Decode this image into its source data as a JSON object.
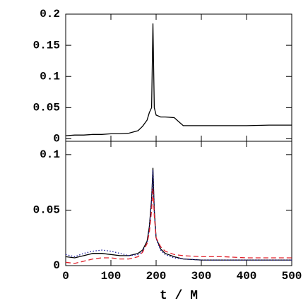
{
  "chart_data": [
    {
      "type": "line",
      "xlim": [
        0,
        500
      ],
      "xticks": [
        0,
        100,
        200,
        300,
        400,
        500
      ],
      "ylim": [
        -0.004,
        0.2
      ],
      "yticks": [
        0,
        0.05,
        0.1,
        0.15,
        0.2
      ],
      "x": [
        0,
        20,
        40,
        60,
        80,
        100,
        120,
        140,
        160,
        170,
        180,
        185,
        190,
        193,
        196,
        200,
        210,
        220,
        240,
        260,
        300,
        350,
        400,
        450,
        500
      ],
      "series": [
        {
          "color": "#000000",
          "style": "solid",
          "values": [
            0.005,
            0.006,
            0.006,
            0.007,
            0.007,
            0.008,
            0.008,
            0.009,
            0.013,
            0.02,
            0.03,
            0.042,
            0.05,
            0.185,
            0.05,
            0.038,
            0.035,
            0.035,
            0.034,
            0.021,
            0.021,
            0.021,
            0.021,
            0.022,
            0.022
          ]
        }
      ]
    },
    {
      "type": "line",
      "xlabel": "t / M",
      "xlim": [
        0,
        500
      ],
      "xticks": [
        0,
        100,
        200,
        300,
        400,
        500
      ],
      "ylim": [
        0,
        0.112
      ],
      "yticks": [
        0,
        0.05,
        0.1
      ],
      "x": [
        0,
        20,
        40,
        60,
        80,
        100,
        120,
        140,
        160,
        170,
        180,
        185,
        190,
        193,
        196,
        200,
        210,
        220,
        240,
        260,
        300,
        350,
        400,
        450,
        500
      ],
      "series": [
        {
          "color": "#000000",
          "style": "solid",
          "values": [
            0.008,
            0.007,
            0.009,
            0.011,
            0.011,
            0.01,
            0.009,
            0.009,
            0.011,
            0.014,
            0.022,
            0.035,
            0.06,
            0.088,
            0.05,
            0.025,
            0.015,
            0.011,
            0.008,
            0.006,
            0.005,
            0.005,
            0.005,
            0.005,
            0.005
          ]
        },
        {
          "color": "#1a1aa0",
          "style": "dotted",
          "values": [
            0.01,
            0.008,
            0.011,
            0.013,
            0.014,
            0.013,
            0.011,
            0.009,
            0.01,
            0.013,
            0.02,
            0.033,
            0.06,
            0.086,
            0.048,
            0.024,
            0.014,
            0.01,
            0.007,
            0.006,
            0.005,
            0.005,
            0.005,
            0.005,
            0.005
          ]
        },
        {
          "color": "#e0202a",
          "style": "dashed",
          "values": [
            0.003,
            0.002,
            0.004,
            0.006,
            0.007,
            0.007,
            0.006,
            0.006,
            0.008,
            0.012,
            0.02,
            0.03,
            0.05,
            0.07,
            0.045,
            0.025,
            0.017,
            0.013,
            0.01,
            0.009,
            0.008,
            0.008,
            0.007,
            0.007,
            0.007
          ]
        }
      ]
    }
  ]
}
